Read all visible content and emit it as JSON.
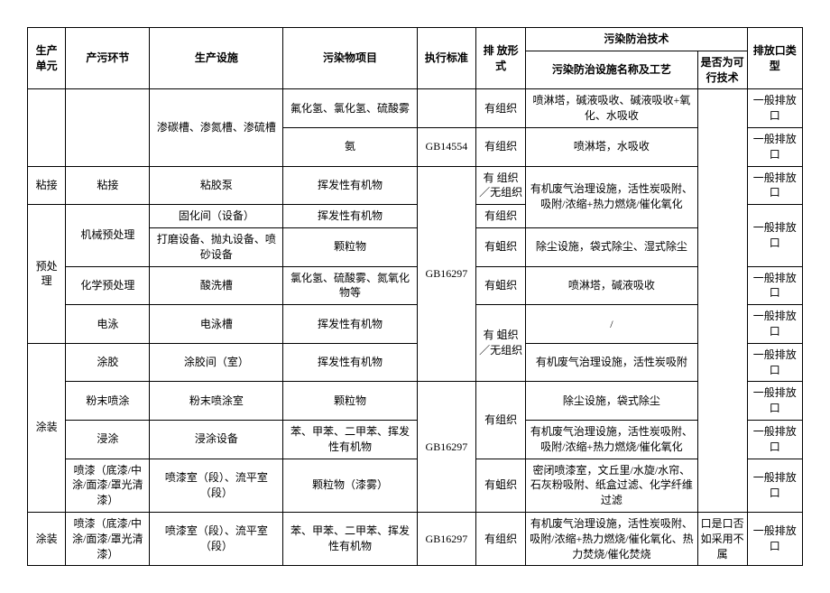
{
  "headers": {
    "unit": "生产单元",
    "process": "产污环节",
    "facility": "生产设施",
    "pollutant": "污染物项目",
    "standard": "执行标准",
    "form": "排 放形式",
    "group": "污染防治技术",
    "tech": "污染防治设施名称及工艺",
    "feasible": "是否为可行技术",
    "outlet": "排放口类型"
  },
  "rows": {
    "r1_facility": "渗碳槽、渗氮槽、渗硫槽",
    "r1_pollutant": "氟化氢、氯化氢、硫酸雾",
    "r1_form": "有组织",
    "r1_tech": "喷淋塔，碱液吸收、碱液吸收+氧化、水吸收",
    "r1_outlet": "一般排放口",
    "r2_pollutant": "氨",
    "r2_standard": "GB14554",
    "r2_form": "有组织",
    "r2_tech": "喷淋塔，水吸收",
    "r2_outlet": "一般排放口",
    "r3_unit": "粘接",
    "r3_process": "粘接",
    "r3_facility": "粘胶泵",
    "r3_pollutant": "挥发性有机物",
    "r3_form": "有 组织／无组织",
    "r3_tech": "有机废气治理设施，活性炭吸附、吸附/浓缩+热力燃烧/催化氧化",
    "r3_outlet": "一般排放口",
    "r3_standard_block": "GB16297",
    "r4_unit": "预处理",
    "r4_process": "机械预处理",
    "r4_facility": "固化间（设备）",
    "r4_pollutant": "挥发性有机物",
    "r4_form": "有组织",
    "r5_facility": "打磨设备、抛丸设备、喷砂设备",
    "r5_pollutant": "颗粒物",
    "r5_form": "有蛆织",
    "r5_tech": "除尘设施，袋式除尘、湿式除尘",
    "r5_outlet": "一般排放口",
    "r6_process": "化学预处理",
    "r6_facility": "酸洗槽",
    "r6_pollutant": "氯化氢、硫酸雾、氮氧化物等",
    "r6_form": "有蛆织",
    "r6_tech": "喷淋塔，碱液吸收",
    "r6_outlet": "一般排放口",
    "r7_process": "电泳",
    "r7_facility": "电泳槽",
    "r7_pollutant": "挥发性有机物",
    "r7_form": "有 蛆织／无组织",
    "r7_tech": "/",
    "r7_outlet": "一般排放口",
    "r8_process": "涂胶",
    "r8_facility": "涂胶间（室）",
    "r8_pollutant": "挥发性有机物",
    "r8_tech": "有机废气治理设施，活性炭吸附",
    "r8_outlet": "一般排放口",
    "r9_unit": "涂装",
    "r9_process": "粉末喷涂",
    "r9_facility": "粉末喷涂室",
    "r9_pollutant": "颗粒物",
    "r9_standard": "GB16297",
    "r9_form_block": "有组织",
    "r9_tech": "除尘设施，袋式除尘",
    "r9_outlet": "一般排放口",
    "r10_process": "浸涂",
    "r10_facility": "浸涂设备",
    "r10_pollutant": "苯、甲苯、二甲苯、挥发性有机物",
    "r10_tech": "有机废气治理设施，活性炭吸附、吸附/浓缩+热力燃烧/催化氧化",
    "r10_outlet": "一般排放口",
    "r11_process": "喷漆（底漆/中涂/面漆/罩光清漆）",
    "r11_facility": "喷漆室（段）、流平室（段）",
    "r11_pollutant": "颗粒物（漆雾）",
    "r11_form": "有蛆织",
    "r11_tech": "密闭喷漆室，文丘里/水旋/水帘、石灰粉吸附、纸盒过滤、化学纤维过滤",
    "r11_outlet": "一般排放口",
    "r12_unit": "涂装",
    "r12_process": "喷漆（底漆/中涂/面漆/罩光清漆）",
    "r12_facility": "喷漆室（段）、流平室（段）",
    "r12_pollutant": "苯、甲苯、二甲苯、挥发性有机物",
    "r12_standard": "GB16297",
    "r12_form": "有组织",
    "r12_tech": "有机废气治理设施，活性炭吸附、吸附/浓缩+热力燃烧/催化氧化、热力焚烧/催化焚烧",
    "r12_feasible": "口是口否如采用不属",
    "r12_outlet": "一般排放口"
  }
}
